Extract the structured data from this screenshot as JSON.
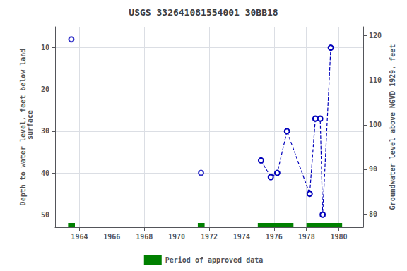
{
  "chart_data": {
    "type": "line",
    "title": "USGS 332641081554001 30BB18",
    "ylabel": "Depth to water level, feet below land\n surface",
    "y2label": "Groundwater level above NGVD 1929, feet",
    "xlim": [
      1962.5,
      1981.5
    ],
    "xticks": [
      1964,
      1966,
      1968,
      1970,
      1972,
      1974,
      1976,
      1978,
      1980
    ],
    "ylim": [
      53,
      5
    ],
    "yticks": [
      10,
      20,
      30,
      40,
      50
    ],
    "y2lim": [
      77,
      122
    ],
    "y2ticks": [
      80,
      90,
      100,
      110,
      120
    ],
    "grid": true,
    "legend": "bottom",
    "series": [
      {
        "type": "scatter",
        "color": "#0000bb",
        "marker": "circle",
        "x": [
          1963.5,
          1971.5
        ],
        "values": [
          8,
          40
        ]
      },
      {
        "type": "line",
        "color": "#0000bb",
        "marker": "circle",
        "line_style": "dashed",
        "x": [
          1975.2,
          1975.8,
          1976.2,
          1976.8,
          1978.2,
          1978.55,
          1978.85,
          1979.0,
          1979.5
        ],
        "values": [
          37,
          41,
          40,
          30,
          45,
          27,
          27,
          50,
          10
        ]
      },
      {
        "type": "span",
        "name": "Period of approved data",
        "color": "#008000",
        "periods": [
          [
            1963.3,
            1963.72
          ],
          [
            1971.3,
            1971.72
          ],
          [
            1975.0,
            1977.2
          ],
          [
            1978.0,
            1980.2
          ]
        ]
      }
    ]
  }
}
